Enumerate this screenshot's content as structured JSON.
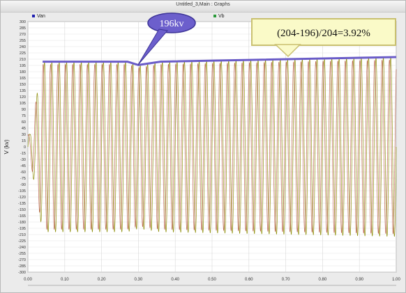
{
  "window": {
    "title": "Untitled_3,Main : Graphs"
  },
  "legend": [
    {
      "name": "Van",
      "color": "#1f1fb0"
    },
    {
      "name": "Vb",
      "color": "#2a9a3a"
    }
  ],
  "chart_data": {
    "type": "line",
    "ylabel": "V (kv)",
    "xlabel": "",
    "xlim": [
      0.0,
      1.0
    ],
    "ylim": [
      -300,
      300
    ],
    "x_ticks": [
      "0.00",
      "0.10",
      "0.20",
      "0.30",
      "0.40",
      "0.50",
      "0.60",
      "0.70",
      "0.80",
      "0.90",
      "1.00"
    ],
    "y_tick_step": 15,
    "grid": true,
    "frequency_hz": 50,
    "envelope": [
      {
        "x": 0.04,
        "y": 204
      },
      {
        "x": 0.27,
        "y": 204
      },
      {
        "x": 0.3,
        "y": 196
      },
      {
        "x": 0.36,
        "y": 204
      },
      {
        "x": 1.0,
        "y": 215
      }
    ],
    "series": [
      {
        "name": "Van",
        "color": "#1f1fb0"
      },
      {
        "name": "Vb",
        "color": "#2a9a3a"
      }
    ],
    "trace_colors": [
      "#8a8a00",
      "#a8361f"
    ],
    "annotations": [
      {
        "text": "196kv",
        "x": 0.3,
        "y": 196
      },
      {
        "text": "(204-196)/204=3.92%",
        "x": 0.72,
        "y": 215
      }
    ]
  }
}
